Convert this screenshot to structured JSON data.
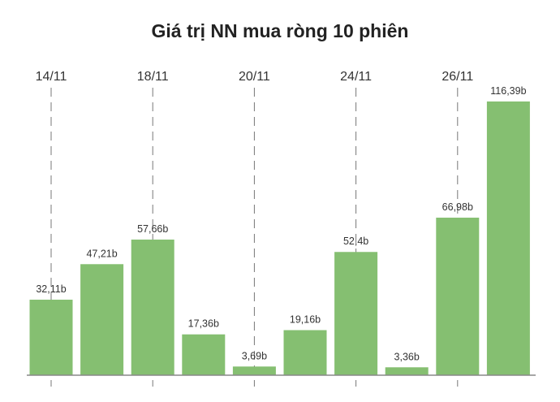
{
  "chart_data": {
    "type": "bar",
    "title": "Giá trị NN mua ròng 10 phiên",
    "xlabel": "",
    "ylabel": "",
    "ylim": [
      0,
      125
    ],
    "grid": "vertical dashed lines at labeled dates",
    "categories_labeled": [
      "14/11",
      "18/11",
      "20/11",
      "24/11",
      "26/11"
    ],
    "labeled_bar_index": [
      0,
      2,
      4,
      6,
      8
    ],
    "values": [
      32.11,
      47.21,
      57.66,
      17.36,
      3.69,
      19.16,
      52.4,
      3.36,
      66.98,
      116.39
    ],
    "data_labels": [
      "32,11b",
      "47,21b",
      "57,66b",
      "17,36b",
      "3,69b",
      "19,16b",
      "52,4b",
      "3,36b",
      "66,98b",
      "116,39b"
    ],
    "bar_color": "#85bf71"
  }
}
